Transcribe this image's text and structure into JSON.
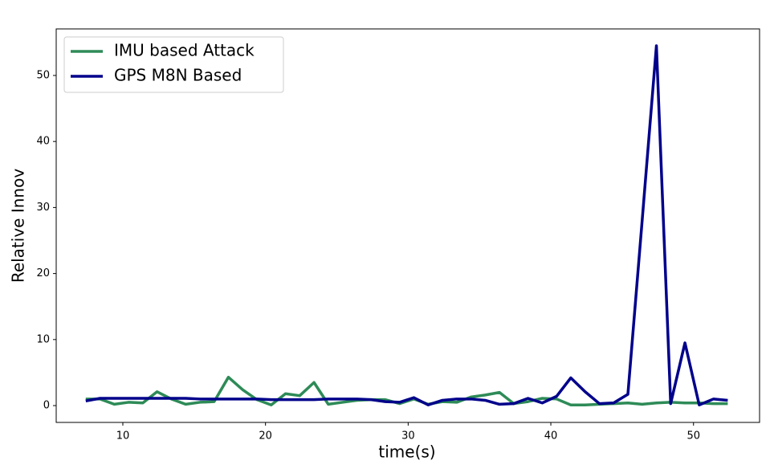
{
  "chart_data": {
    "type": "line",
    "x_label": "time(s)",
    "y_label": "Relative Innov",
    "x": [
      7.4,
      8.4,
      9.4,
      10.4,
      11.4,
      12.4,
      13.4,
      14.4,
      15.4,
      16.4,
      17.4,
      18.4,
      19.4,
      20.4,
      21.4,
      22.4,
      23.4,
      24.4,
      25.4,
      26.4,
      27.4,
      28.4,
      29.4,
      30.4,
      31.4,
      32.4,
      33.4,
      34.4,
      35.4,
      36.4,
      37.4,
      38.4,
      39.4,
      40.4,
      41.4,
      42.4,
      43.4,
      44.4,
      45.4,
      46.4,
      47.4,
      48.4,
      49.4,
      50.4,
      51.4,
      52.4
    ],
    "series": [
      {
        "name": "IMU based Attack",
        "color": "#2e8b57",
        "values": [
          1.0,
          1.0,
          0.2,
          0.5,
          0.4,
          2.1,
          1.0,
          0.2,
          0.5,
          0.6,
          4.3,
          2.4,
          0.9,
          0.1,
          1.8,
          1.5,
          3.5,
          0.2,
          0.5,
          0.8,
          0.9,
          0.9,
          0.3,
          1.0,
          0.2,
          0.6,
          0.5,
          1.3,
          1.6,
          2.0,
          0.3,
          0.6,
          1.1,
          1.0,
          0.1,
          0.1,
          0.2,
          0.3,
          0.4,
          0.2,
          0.4,
          0.5,
          0.4,
          0.4,
          0.3,
          0.3
        ]
      },
      {
        "name": "GPS M8N Based",
        "color": "#00008b",
        "values": [
          0.7,
          1.1,
          1.1,
          1.1,
          1.1,
          1.1,
          1.1,
          1.1,
          1.0,
          1.0,
          1.0,
          1.0,
          1.0,
          0.9,
          0.9,
          0.9,
          0.9,
          1.0,
          1.0,
          1.0,
          0.9,
          0.6,
          0.5,
          1.2,
          0.1,
          0.8,
          1.0,
          1.0,
          0.8,
          0.2,
          0.3,
          1.1,
          0.4,
          1.4,
          4.2,
          2.1,
          0.3,
          0.4,
          1.7,
          28,
          54.5,
          0.3,
          9.5,
          0.1,
          1.0,
          0.8
        ]
      }
    ],
    "xlim": [
      5.33,
      54.63
    ],
    "ylim": [
      -2.55,
      57.05
    ],
    "xticks": [
      10,
      20,
      30,
      40,
      50
    ],
    "yticks": [
      0,
      10,
      20,
      30,
      40,
      50
    ],
    "grid": false,
    "legend": "upper-left"
  }
}
